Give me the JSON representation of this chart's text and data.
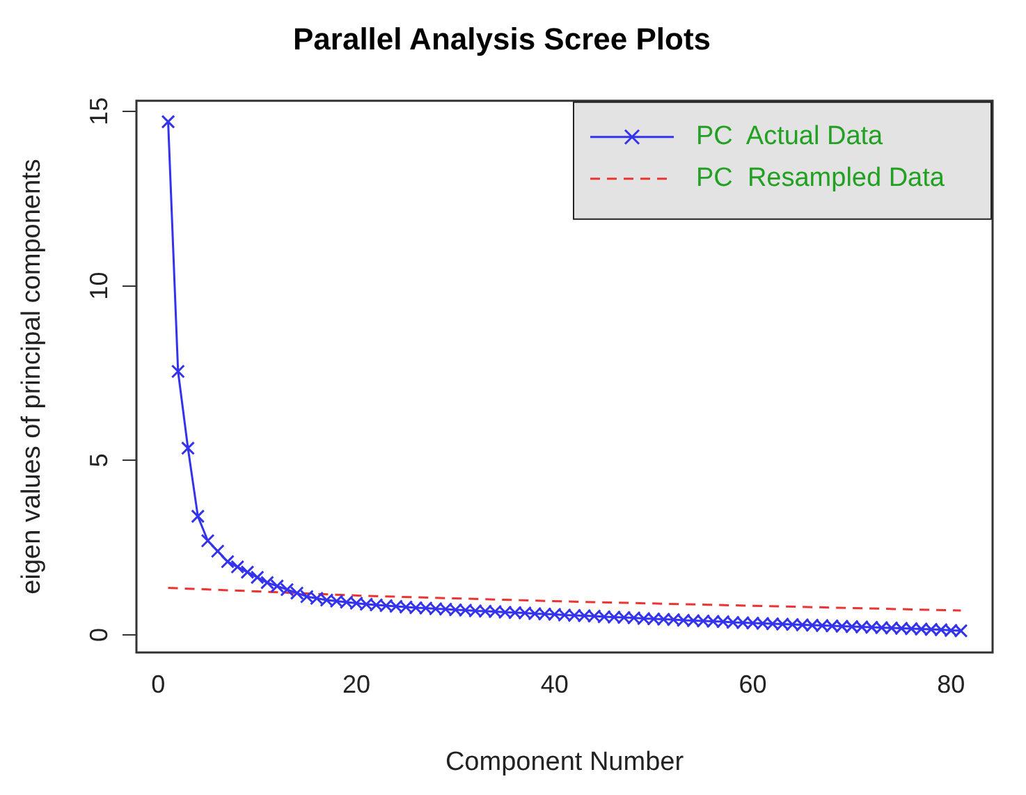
{
  "chart_data": {
    "type": "line",
    "title": "Parallel Analysis Scree Plots",
    "xlabel": "Component Number",
    "ylabel": "eigen values of principal components",
    "xlim": [
      -2.2,
      84.2
    ],
    "xticks": [
      0,
      20,
      40,
      60,
      80
    ],
    "ylim": [
      -0.5,
      15.3
    ],
    "yticks": [
      0,
      5,
      10,
      15
    ],
    "grid": false,
    "legend": "top right",
    "series": [
      {
        "name": "PC  Actual Data",
        "color": "#3333ee",
        "marker": "cross",
        "line_style": "solid",
        "x": [
          1,
          2,
          3,
          4,
          5,
          6,
          7,
          8,
          9,
          10,
          11,
          12,
          13,
          14,
          15,
          16,
          17,
          18,
          19,
          20,
          21,
          22,
          23,
          24,
          25,
          26,
          27,
          28,
          29,
          30,
          31,
          32,
          33,
          34,
          35,
          36,
          37,
          38,
          39,
          40,
          41,
          42,
          43,
          44,
          45,
          46,
          47,
          48,
          49,
          50,
          51,
          52,
          53,
          54,
          55,
          56,
          57,
          58,
          59,
          60,
          61,
          62,
          63,
          64,
          65,
          66,
          67,
          68,
          69,
          70,
          71,
          72,
          73,
          74,
          75,
          76,
          77,
          78,
          79,
          80,
          81
        ],
        "values": [
          14.7,
          7.55,
          5.35,
          3.4,
          2.7,
          2.4,
          2.1,
          1.95,
          1.8,
          1.65,
          1.5,
          1.4,
          1.3,
          1.2,
          1.1,
          1.05,
          1.0,
          0.97,
          0.94,
          0.91,
          0.88,
          0.86,
          0.84,
          0.82,
          0.8,
          0.78,
          0.77,
          0.75,
          0.74,
          0.72,
          0.71,
          0.69,
          0.68,
          0.67,
          0.65,
          0.64,
          0.63,
          0.61,
          0.6,
          0.59,
          0.57,
          0.56,
          0.55,
          0.54,
          0.52,
          0.51,
          0.5,
          0.49,
          0.47,
          0.46,
          0.45,
          0.44,
          0.42,
          0.41,
          0.4,
          0.39,
          0.38,
          0.36,
          0.35,
          0.34,
          0.33,
          0.32,
          0.31,
          0.3,
          0.29,
          0.28,
          0.27,
          0.26,
          0.25,
          0.24,
          0.23,
          0.22,
          0.21,
          0.2,
          0.19,
          0.18,
          0.17,
          0.16,
          0.15,
          0.13,
          0.12
        ]
      },
      {
        "name": "PC  Resampled Data",
        "color": "#ee3333",
        "marker": "none",
        "line_style": "dashed",
        "x": [
          1,
          21,
          41,
          61,
          81
        ],
        "values": [
          1.35,
          1.12,
          0.96,
          0.83,
          0.7
        ]
      }
    ]
  }
}
